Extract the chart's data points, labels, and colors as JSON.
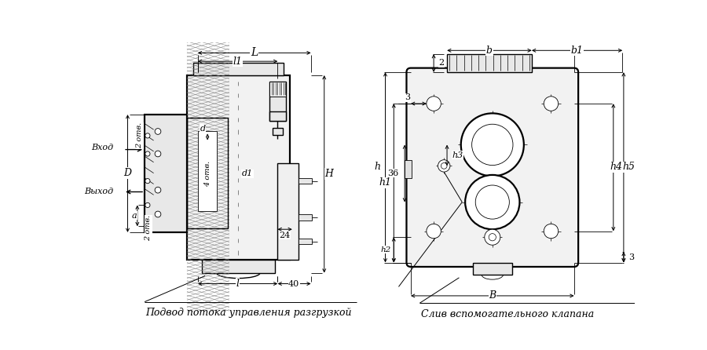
{
  "bg_color": "#ffffff",
  "line_color": "#000000",
  "caption_left": "Подвод потока управления разгрузкой",
  "caption_right": "Слив вспомогательного клапана",
  "label_L": "L",
  "label_l1": "l1",
  "label_l": "l",
  "label_40": "40",
  "label_D": "D",
  "label_d": "d",
  "label_d1": "d1",
  "label_a": "a",
  "label_H": "H",
  "label_24": "24",
  "label_2otv": "2 отв.",
  "label_4otv": "4 отв.",
  "label_Vhod": "Вход",
  "label_Vyhod": "Выход",
  "label_b": "b",
  "label_b1": "b1",
  "label_2r": "2",
  "label_3l": "3",
  "label_3r": "3",
  "label_36": "36",
  "label_h": "h",
  "label_h1": "h1",
  "label_h2": "h2",
  "label_h3": "h3",
  "label_h4": "h4",
  "label_h5": "h5",
  "label_B": "B"
}
